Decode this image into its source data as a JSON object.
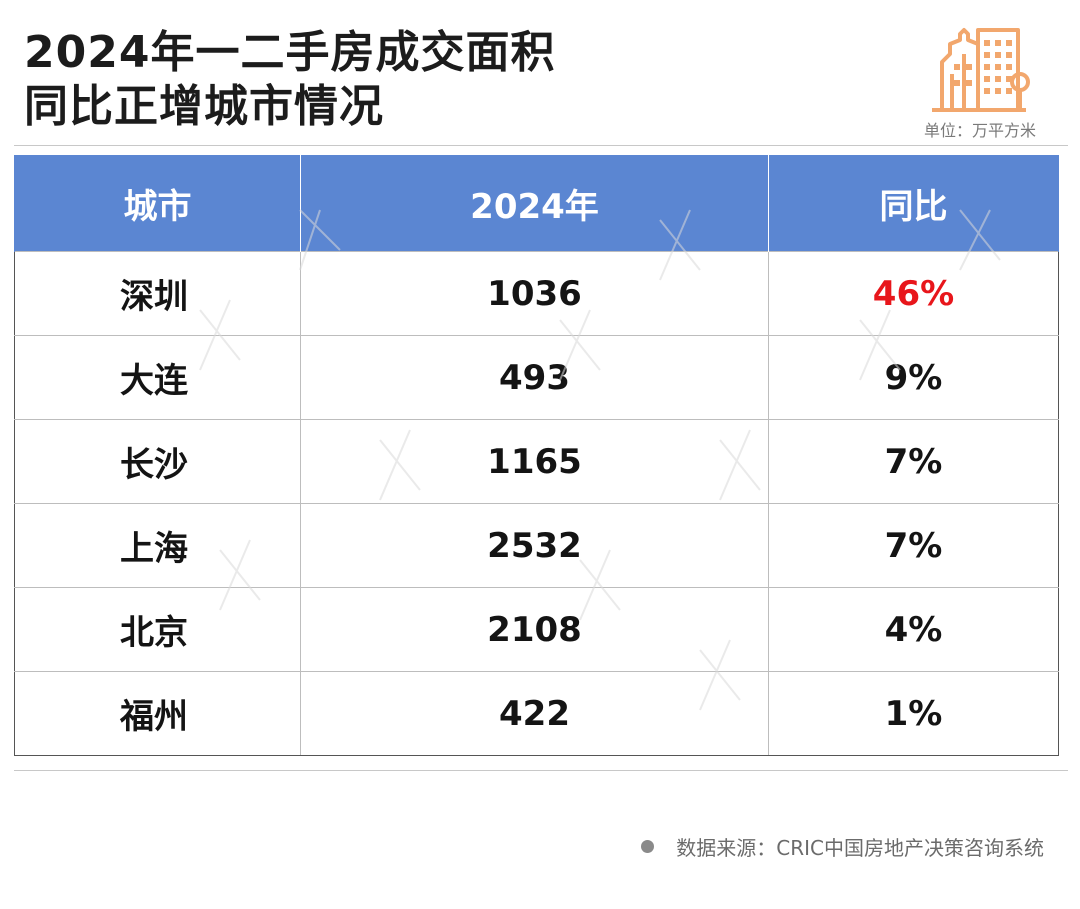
{
  "title_line1": "2024年一二手房成交面积",
  "title_line2": "同比正增城市情况",
  "unit": "单位：万平方米",
  "source": "数据来源：CRIC中国房地产决策咨询系统",
  "colors": {
    "header_bg": "#5b86d2",
    "highlight": "#e8161b",
    "logo": "#f2a76d"
  },
  "icons": {
    "logo": "city-buildings-icon",
    "bullet": "dot-icon"
  },
  "chart_data": {
    "type": "table",
    "columns": [
      "城市",
      "2024年",
      "同比"
    ],
    "rows": [
      {
        "city": "深圳",
        "area": "1036",
        "yoy": "46%"
      },
      {
        "city": "大连",
        "area": "493",
        "yoy": "9%"
      },
      {
        "city": "长沙",
        "area": "1165",
        "yoy": "7%"
      },
      {
        "city": "上海",
        "area": "2532",
        "yoy": "7%"
      },
      {
        "city": "北京",
        "area": "2108",
        "yoy": "4%"
      },
      {
        "city": "福州",
        "area": "422",
        "yoy": "1%"
      }
    ],
    "highlight_row": 0
  }
}
